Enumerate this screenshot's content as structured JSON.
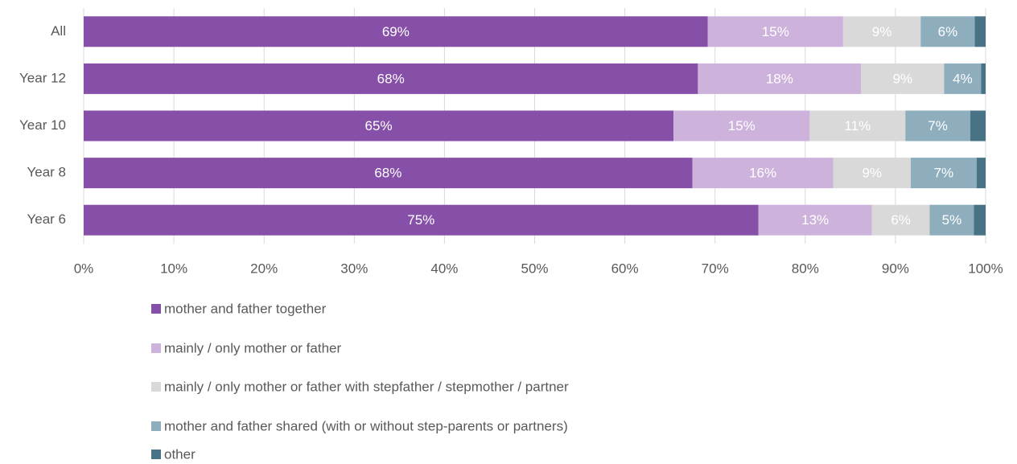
{
  "chart_data": {
    "type": "stacked-barh",
    "categories": [
      "All",
      "Year 12",
      "Year 10",
      "Year 8",
      "Year 6"
    ],
    "series": [
      {
        "name": "mother and father together",
        "color": "#8650a8",
        "values": [
          69.2,
          68.1,
          65.4,
          67.5,
          74.8
        ],
        "value_labels": [
          "69%",
          "68%",
          "65%",
          "68%",
          "75%"
        ]
      },
      {
        "name": "mainly / only mother or father",
        "color": "#cdb3dc",
        "values": [
          15.0,
          18.1,
          15.1,
          15.6,
          12.6
        ],
        "value_labels": [
          "15%",
          "18%",
          "15%",
          "16%",
          "13%"
        ]
      },
      {
        "name": "mainly / only mother or father with stepfather / stepmother / partner",
        "color": "#d9d9d9",
        "values": [
          8.6,
          9.2,
          10.6,
          8.6,
          6.4
        ],
        "value_labels": [
          "9%",
          "9%",
          "11%",
          "9%",
          "6%"
        ]
      },
      {
        "name": "mother and father shared (with or without step-parents or partners)",
        "color": "#8eadbd",
        "values": [
          6.0,
          4.1,
          7.2,
          7.3,
          4.9
        ],
        "value_labels": [
          "6%",
          "4%",
          "7%",
          "7%",
          "5%"
        ]
      },
      {
        "name": "other",
        "color": "#487386",
        "values": [
          1.2,
          0.5,
          1.7,
          1.0,
          1.3
        ]
      }
    ],
    "xlim": [
      0,
      100
    ],
    "xticks": [
      {
        "value": 0,
        "label": "0%"
      },
      {
        "value": 10,
        "label": "10%"
      },
      {
        "value": 20,
        "label": "20%"
      },
      {
        "value": 30,
        "label": "30%"
      },
      {
        "value": 40,
        "label": "40%"
      },
      {
        "value": 50,
        "label": "50%"
      },
      {
        "value": 60,
        "label": "60%"
      },
      {
        "value": 70,
        "label": "70%"
      },
      {
        "value": 80,
        "label": "80%"
      },
      {
        "value": 90,
        "label": "90%"
      },
      {
        "value": 100,
        "label": "100%"
      }
    ],
    "grid": true
  }
}
